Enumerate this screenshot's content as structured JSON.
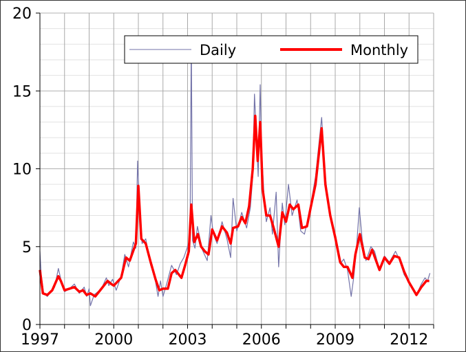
{
  "chart_data": {
    "type": "line",
    "title": "",
    "xlabel": "",
    "ylabel": "",
    "xlim": [
      1997,
      2013
    ],
    "ylim": [
      0,
      20
    ],
    "x_ticks": [
      1997,
      2000,
      2003,
      2006,
      2009,
      2012
    ],
    "x_tick_labels": [
      "1997",
      "2000",
      "2003",
      "2006",
      "2009",
      "2012"
    ],
    "y_ticks": [
      0,
      5,
      10,
      15,
      20
    ],
    "y_tick_labels": [
      "0",
      "5",
      "10",
      "15",
      "20"
    ],
    "grid": true,
    "legend_placement": "top-center",
    "colors": {
      "Daily": "#7272a8",
      "Monthly": "#ff0000"
    },
    "series": [
      {
        "name": "Daily",
        "points": [
          [
            1997.0,
            4.7
          ],
          [
            1997.05,
            3.2
          ],
          [
            1997.15,
            2.0
          ],
          [
            1997.3,
            1.8
          ],
          [
            1997.5,
            2.2
          ],
          [
            1997.6,
            2.4
          ],
          [
            1997.75,
            3.6
          ],
          [
            1997.85,
            2.9
          ],
          [
            1998.0,
            2.1
          ],
          [
            1998.2,
            2.3
          ],
          [
            1998.4,
            2.6
          ],
          [
            1998.6,
            2.0
          ],
          [
            1998.8,
            2.4
          ],
          [
            1998.9,
            1.8
          ],
          [
            1999.0,
            2.3
          ],
          [
            1999.05,
            1.2
          ],
          [
            1999.2,
            1.9
          ],
          [
            1999.5,
            2.3
          ],
          [
            1999.7,
            3.0
          ],
          [
            1999.8,
            2.5
          ],
          [
            1999.95,
            2.9
          ],
          [
            2000.1,
            2.2
          ],
          [
            2000.3,
            3.1
          ],
          [
            2000.45,
            4.5
          ],
          [
            2000.6,
            3.7
          ],
          [
            2000.8,
            5.3
          ],
          [
            2000.9,
            4.9
          ],
          [
            2000.97,
            10.5
          ],
          [
            2001.05,
            7.5
          ],
          [
            2001.15,
            5.2
          ],
          [
            2001.3,
            5.5
          ],
          [
            2001.5,
            3.8
          ],
          [
            2001.65,
            3.2
          ],
          [
            2001.8,
            1.8
          ],
          [
            2001.9,
            2.8
          ],
          [
            2002.0,
            1.8
          ],
          [
            2002.15,
            2.6
          ],
          [
            2002.35,
            3.8
          ],
          [
            2002.55,
            3.2
          ],
          [
            2002.7,
            3.9
          ],
          [
            2002.85,
            4.3
          ],
          [
            2003.0,
            5.0
          ],
          [
            2003.1,
            5.6
          ],
          [
            2003.15,
            18.5
          ],
          [
            2003.2,
            5.4
          ],
          [
            2003.3,
            4.9
          ],
          [
            2003.4,
            6.3
          ],
          [
            2003.6,
            4.8
          ],
          [
            2003.8,
            4.1
          ],
          [
            2003.95,
            7.0
          ],
          [
            2004.05,
            5.8
          ],
          [
            2004.2,
            5.2
          ],
          [
            2004.4,
            6.6
          ],
          [
            2004.6,
            5.5
          ],
          [
            2004.75,
            4.3
          ],
          [
            2004.85,
            8.1
          ],
          [
            2005.0,
            6.0
          ],
          [
            2005.2,
            7.2
          ],
          [
            2005.4,
            6.2
          ],
          [
            2005.55,
            7.5
          ],
          [
            2005.65,
            9.5
          ],
          [
            2005.72,
            14.8
          ],
          [
            2005.8,
            12.0
          ],
          [
            2005.87,
            9.5
          ],
          [
            2005.95,
            15.4
          ],
          [
            2006.0,
            11.5
          ],
          [
            2006.1,
            8.5
          ],
          [
            2006.2,
            6.6
          ],
          [
            2006.35,
            7.5
          ],
          [
            2006.45,
            5.8
          ],
          [
            2006.6,
            8.5
          ],
          [
            2006.7,
            3.7
          ],
          [
            2006.85,
            7.8
          ],
          [
            2006.95,
            6.4
          ],
          [
            2007.1,
            9.0
          ],
          [
            2007.25,
            7.0
          ],
          [
            2007.45,
            8.0
          ],
          [
            2007.6,
            6.0
          ],
          [
            2007.75,
            5.8
          ],
          [
            2007.95,
            7.2
          ],
          [
            2008.2,
            9.5
          ],
          [
            2008.45,
            13.3
          ],
          [
            2008.6,
            9.5
          ],
          [
            2008.75,
            7.3
          ],
          [
            2008.9,
            6.5
          ],
          [
            2009.0,
            5.4
          ],
          [
            2009.2,
            3.9
          ],
          [
            2009.35,
            4.2
          ],
          [
            2009.5,
            3.5
          ],
          [
            2009.65,
            1.8
          ],
          [
            2009.75,
            3.0
          ],
          [
            2009.85,
            4.6
          ],
          [
            2009.98,
            7.5
          ],
          [
            2010.1,
            5.4
          ],
          [
            2010.25,
            4.1
          ],
          [
            2010.45,
            5.0
          ],
          [
            2010.6,
            4.7
          ],
          [
            2010.8,
            3.5
          ],
          [
            2011.0,
            4.4
          ],
          [
            2011.2,
            4.0
          ],
          [
            2011.45,
            4.7
          ],
          [
            2011.6,
            4.2
          ],
          [
            2011.8,
            3.2
          ],
          [
            2012.0,
            2.7
          ],
          [
            2012.3,
            1.9
          ],
          [
            2012.5,
            2.6
          ],
          [
            2012.65,
            3.0
          ],
          [
            2012.75,
            2.8
          ],
          [
            2012.85,
            3.3
          ]
        ]
      },
      {
        "name": "Monthly",
        "points": [
          [
            1997.0,
            3.5
          ],
          [
            1997.12,
            2.0
          ],
          [
            1997.3,
            1.9
          ],
          [
            1997.5,
            2.2
          ],
          [
            1997.75,
            3.1
          ],
          [
            1997.85,
            2.8
          ],
          [
            1998.0,
            2.2
          ],
          [
            1998.2,
            2.3
          ],
          [
            1998.4,
            2.4
          ],
          [
            1998.6,
            2.1
          ],
          [
            1998.75,
            2.2
          ],
          [
            1998.9,
            1.9
          ],
          [
            1999.05,
            2.0
          ],
          [
            1999.25,
            1.8
          ],
          [
            1999.5,
            2.3
          ],
          [
            1999.75,
            2.8
          ],
          [
            1999.9,
            2.6
          ],
          [
            2000.0,
            2.5
          ],
          [
            2000.3,
            3.0
          ],
          [
            2000.5,
            4.3
          ],
          [
            2000.65,
            4.1
          ],
          [
            2000.9,
            5.2
          ],
          [
            2001.0,
            8.9
          ],
          [
            2001.12,
            5.5
          ],
          [
            2001.3,
            5.2
          ],
          [
            2001.5,
            4.0
          ],
          [
            2001.7,
            2.9
          ],
          [
            2001.85,
            2.2
          ],
          [
            2002.0,
            2.3
          ],
          [
            2002.2,
            2.3
          ],
          [
            2002.35,
            3.3
          ],
          [
            2002.5,
            3.5
          ],
          [
            2002.75,
            3.0
          ],
          [
            2002.9,
            3.8
          ],
          [
            2003.05,
            4.7
          ],
          [
            2003.15,
            7.7
          ],
          [
            2003.27,
            5.3
          ],
          [
            2003.42,
            5.8
          ],
          [
            2003.55,
            5.0
          ],
          [
            2003.7,
            4.7
          ],
          [
            2003.85,
            4.5
          ],
          [
            2004.0,
            6.1
          ],
          [
            2004.2,
            5.4
          ],
          [
            2004.4,
            6.3
          ],
          [
            2004.6,
            5.9
          ],
          [
            2004.75,
            5.2
          ],
          [
            2004.85,
            6.2
          ],
          [
            2005.05,
            6.3
          ],
          [
            2005.2,
            6.9
          ],
          [
            2005.35,
            6.5
          ],
          [
            2005.5,
            7.6
          ],
          [
            2005.65,
            10.0
          ],
          [
            2005.75,
            13.4
          ],
          [
            2005.85,
            10.5
          ],
          [
            2005.95,
            13.0
          ],
          [
            2006.05,
            8.7
          ],
          [
            2006.2,
            7.0
          ],
          [
            2006.35,
            7.0
          ],
          [
            2006.5,
            6.2
          ],
          [
            2006.7,
            5.0
          ],
          [
            2006.85,
            7.2
          ],
          [
            2007.0,
            6.6
          ],
          [
            2007.15,
            7.7
          ],
          [
            2007.3,
            7.4
          ],
          [
            2007.5,
            7.7
          ],
          [
            2007.65,
            6.2
          ],
          [
            2007.85,
            6.3
          ],
          [
            2008.0,
            7.5
          ],
          [
            2008.2,
            9.0
          ],
          [
            2008.45,
            12.6
          ],
          [
            2008.6,
            9.0
          ],
          [
            2008.8,
            7.0
          ],
          [
            2009.0,
            5.6
          ],
          [
            2009.2,
            4.0
          ],
          [
            2009.35,
            3.7
          ],
          [
            2009.5,
            3.7
          ],
          [
            2009.7,
            3.0
          ],
          [
            2009.82,
            4.5
          ],
          [
            2010.0,
            5.8
          ],
          [
            2010.2,
            4.3
          ],
          [
            2010.35,
            4.2
          ],
          [
            2010.5,
            4.8
          ],
          [
            2010.8,
            3.5
          ],
          [
            2011.0,
            4.3
          ],
          [
            2011.2,
            3.9
          ],
          [
            2011.4,
            4.4
          ],
          [
            2011.6,
            4.3
          ],
          [
            2011.8,
            3.4
          ],
          [
            2012.0,
            2.7
          ],
          [
            2012.3,
            1.9
          ],
          [
            2012.5,
            2.4
          ],
          [
            2012.7,
            2.8
          ],
          [
            2012.82,
            2.8
          ]
        ]
      }
    ]
  },
  "legend": {
    "daily_label": "Daily",
    "monthly_label": "Monthly"
  }
}
